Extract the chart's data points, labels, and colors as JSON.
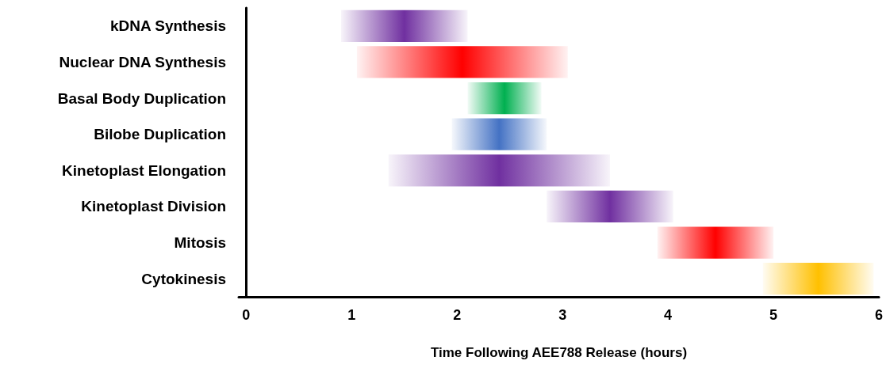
{
  "chart_data": {
    "type": "bar",
    "orientation": "horizontal",
    "xlabel": "Time Following AEE788 Release (hours)",
    "categories": [
      "kDNA Synthesis",
      "Nuclear DNA Synthesis",
      "Basal Body Duplication",
      "Bilobe Duplication",
      "Kinetoplast Elongation",
      "Kinetoplast Division",
      "Mitosis",
      "Cytokinesis"
    ],
    "base": [
      0.9,
      1.05,
      2.1,
      1.95,
      1.35,
      2.85,
      3.9,
      4.9
    ],
    "values": [
      1.2,
      2.0,
      0.7,
      0.9,
      2.1,
      1.2,
      1.1,
      1.05
    ],
    "colors": [
      "#7030a0",
      "#ff0000",
      "#00b050",
      "#4472c4",
      "#7030a0",
      "#7030a0",
      "#ff0000",
      "#ffc000"
    ],
    "xlim": [
      -0.07,
      6
    ],
    "xticks": [
      0,
      1,
      2,
      3,
      4,
      5,
      6
    ]
  }
}
